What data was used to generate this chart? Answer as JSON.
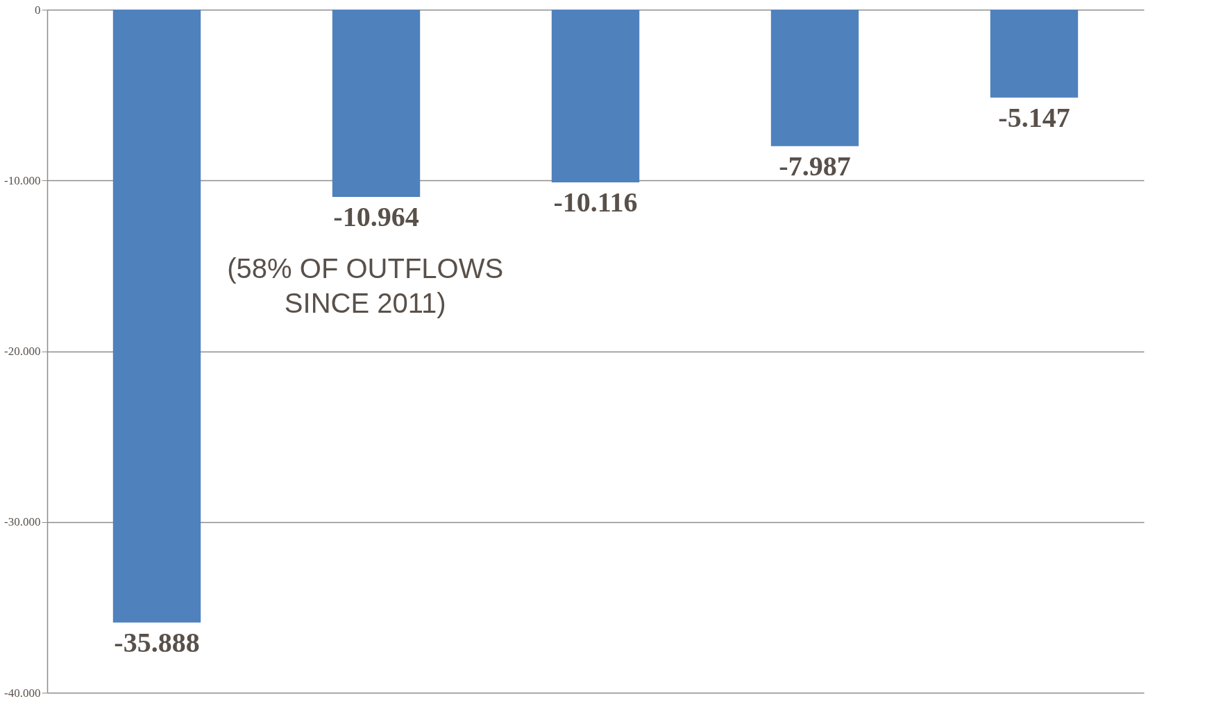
{
  "chart_data": {
    "type": "bar",
    "categories": [
      null,
      null,
      null,
      null,
      null
    ],
    "values": [
      -35888,
      -10964,
      -10116,
      -7987,
      -5147
    ],
    "value_labels": [
      "-35.888",
      "-10.964",
      "-10.116",
      "-7.987",
      "-5.147"
    ],
    "color": "#4f81bd",
    "ylim": [
      -40000,
      0
    ],
    "yticks": [
      {
        "value": -40000,
        "label": "-40.000"
      },
      {
        "value": -30000,
        "label": "-30.000"
      },
      {
        "value": -20000,
        "label": "-20.000"
      },
      {
        "value": -10000,
        "label": "-10.000"
      },
      0
    ],
    "grid": "y",
    "tick_labels": "y",
    "annotations": [
      "(58% OF OUTFLOWS\nSINCE 2011)"
    ]
  }
}
